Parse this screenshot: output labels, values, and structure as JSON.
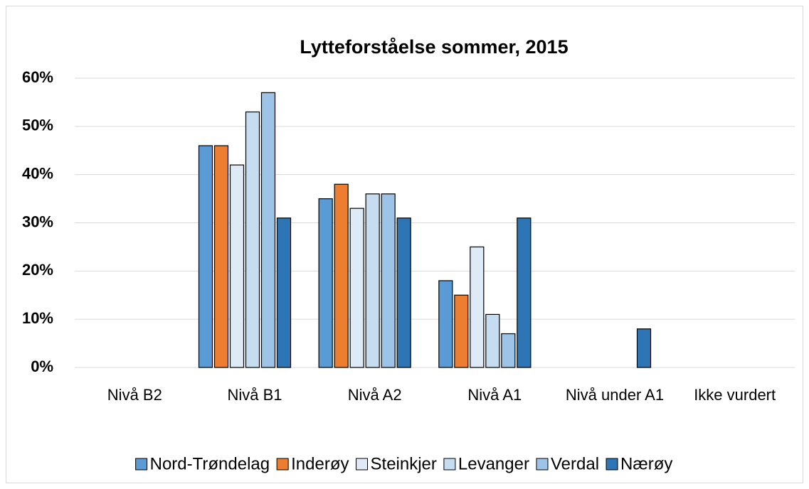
{
  "chart_data": {
    "type": "bar",
    "title": "Lytteforståelse sommer, 2015",
    "categories": [
      "Nivå B2",
      "Nivå B1",
      "Nivå A2",
      "Nivå A1",
      "Nivå under A1",
      "Ikke vurdert"
    ],
    "series": [
      {
        "name": "Nord-Trøndelag",
        "color": "#5b9bd5",
        "values": [
          0,
          46,
          35,
          18,
          0,
          0
        ]
      },
      {
        "name": "Inderøy",
        "color": "#ed7d31",
        "values": [
          0,
          46,
          38,
          15,
          0,
          0
        ]
      },
      {
        "name": "Steinkjer",
        "color": "#deebf7",
        "values": [
          0,
          42,
          33,
          25,
          0,
          0
        ]
      },
      {
        "name": "Levanger",
        "color": "#c5dcf1",
        "values": [
          0,
          53,
          36,
          11,
          0,
          0
        ]
      },
      {
        "name": "Verdal",
        "color": "#9dc3e6",
        "values": [
          0,
          57,
          36,
          7,
          0,
          0
        ]
      },
      {
        "name": "Nærøy",
        "color": "#2e75b6",
        "values": [
          0,
          31,
          31,
          31,
          8,
          0
        ]
      }
    ],
    "ylim": [
      0,
      60
    ],
    "yticks": [
      {
        "value": 0,
        "label": "0%"
      },
      {
        "value": 10,
        "label": "10%"
      },
      {
        "value": 20,
        "label": "20%"
      },
      {
        "value": 30,
        "label": "30%"
      },
      {
        "value": 40,
        "label": "40%"
      },
      {
        "value": 50,
        "label": "50%"
      },
      {
        "value": 60,
        "label": "60%"
      }
    ],
    "grid": true,
    "legend": "bottom"
  }
}
